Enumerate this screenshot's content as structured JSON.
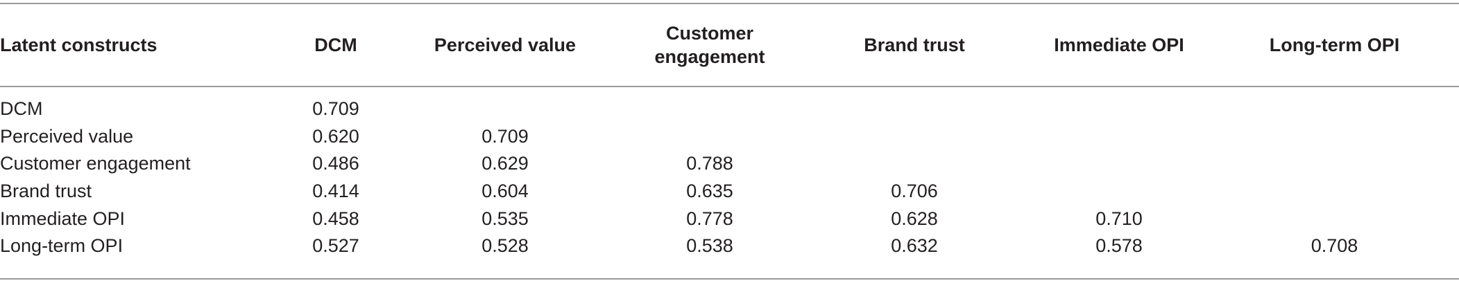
{
  "table": {
    "headers": [
      "Latent constructs",
      "DCM",
      "Perceived value",
      "Customer engagement",
      "Brand trust",
      "Immediate OPI",
      "Long-term OPI"
    ],
    "header_customer_line1": "Customer",
    "header_customer_line2": "engagement",
    "rows": [
      [
        "DCM",
        "0.709",
        "",
        "",
        "",
        "",
        ""
      ],
      [
        "Perceived value",
        "0.620",
        "0.709",
        "",
        "",
        "",
        ""
      ],
      [
        "Customer engagement",
        "0.486",
        "0.629",
        "0.788",
        "",
        "",
        ""
      ],
      [
        "Brand trust",
        "0.414",
        "0.604",
        "0.635",
        "0.706",
        "",
        ""
      ],
      [
        "Immediate OPI",
        "0.458",
        "0.535",
        "0.778",
        "0.628",
        "0.710",
        ""
      ],
      [
        "Long-term OPI",
        "0.527",
        "0.528",
        "0.538",
        "0.632",
        "0.578",
        "0.708"
      ]
    ]
  }
}
